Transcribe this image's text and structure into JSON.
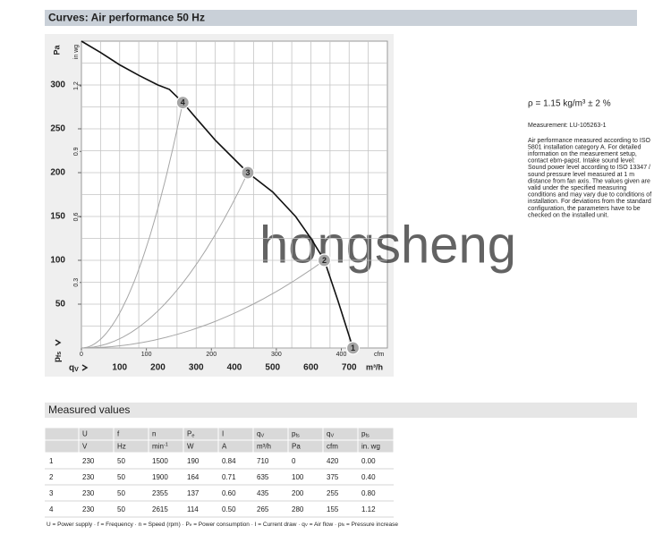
{
  "header": {
    "title": "Curves: Air performance 50 Hz"
  },
  "chart_data": {
    "type": "line",
    "y_label": "Pa",
    "y2_label": "in wg",
    "y_axis_symbol": [
      "p",
      {
        "sub": "fs"
      }
    ],
    "x_axis_symbol": [
      "q",
      {
        "sub": "V"
      }
    ],
    "x_label": "m³/h",
    "x2_label": "cfm",
    "xlim": [
      0,
      800
    ],
    "xticks": [
      100,
      200,
      300,
      400,
      500,
      600,
      700
    ],
    "x2lim": [
      0,
      470.9
    ],
    "x2ticks": [
      0,
      100,
      200,
      300,
      400
    ],
    "ylim": [
      0,
      350
    ],
    "yticks": [
      50,
      100,
      150,
      200,
      250,
      300
    ],
    "y2lim": [
      0,
      1.405
    ],
    "y2ticks": [
      0.3,
      0.6,
      0.9,
      1.2
    ],
    "grid": true,
    "xgrid_step": 50,
    "ygrid_step": 25,
    "curve": {
      "color": "#111111",
      "x": [
        0,
        50,
        100,
        150,
        200,
        230,
        265,
        300,
        350,
        435,
        500,
        560,
        600,
        635,
        670,
        710
      ],
      "y": [
        350,
        337,
        323,
        311,
        300,
        295,
        280,
        262,
        237,
        200,
        178,
        150,
        125,
        100,
        55,
        0
      ]
    },
    "operating_points": {
      "color": "#a6a6a6",
      "x": [
        710,
        635,
        435,
        265
      ],
      "y": [
        0,
        100,
        200,
        280
      ]
    },
    "watermark": "hongsheng"
  },
  "notes": {
    "density": "ρ = 1.15 kg/m³ ± 2 %",
    "measurement": "Measurement: LU-105263-1",
    "text_lines": [
      "Air performance measured according to ISO",
      "5801 installation category A. For detailed",
      "information on the measurement setup,",
      "contact ebm-papst. Intake sound level:",
      "Sound power level according to ISO 13347 /",
      "sound pressure level measured at 1 m",
      "distance from fan axis. The values given are",
      "valid under the specified measuring",
      "conditions and may vary due to conditions of",
      "installation. For deviations from the standard",
      "configuration, the parameters have to be",
      "checked on the installed unit."
    ]
  },
  "table": {
    "title": "Measured values",
    "header_rows": [
      [
        null,
        "U",
        "f",
        "n",
        [
          "P",
          {
            "sub": "e"
          }
        ],
        "I",
        [
          "q",
          {
            "sub": "V"
          }
        ],
        [
          "p",
          {
            "sub": "fs"
          }
        ],
        [
          "q",
          {
            "sub": "V"
          }
        ],
        [
          "p",
          {
            "sub": "fs"
          }
        ]
      ],
      [
        null,
        "V",
        "Hz",
        [
          "min",
          {
            "sup": "-1"
          }
        ],
        "W",
        "A",
        "m³/h",
        "Pa",
        "cfm",
        "in. wg"
      ]
    ],
    "rows": [
      [
        "1",
        "230",
        "50",
        "1500",
        "190",
        "0.84",
        "710",
        "0",
        "420",
        "0.00"
      ],
      [
        "2",
        "230",
        "50",
        "1900",
        "164",
        "0.71",
        "635",
        "100",
        "375",
        "0.40"
      ],
      [
        "3",
        "230",
        "50",
        "2355",
        "137",
        "0.60",
        "435",
        "200",
        "255",
        "0.80"
      ],
      [
        "4",
        "230",
        "50",
        "2615",
        "114",
        "0.50",
        "265",
        "280",
        "155",
        "1.12"
      ]
    ]
  },
  "footnote": [
    "U = Power supply · f = Frequency · n = Speed (rpm) · P",
    {
      "sub": "e"
    },
    " = Power consumption · I = Current draw · q",
    {
      "sub": "V"
    },
    " = Air flow · p",
    {
      "sub": "fs"
    },
    " = Pressure increase"
  ]
}
